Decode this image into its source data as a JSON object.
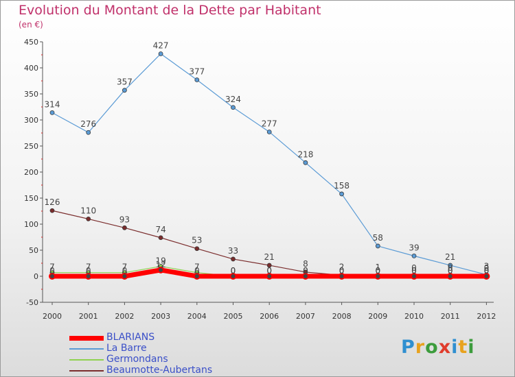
{
  "header": {
    "title": "Evolution du Montant de la Dette par Habitant",
    "subtitle": "(en €)"
  },
  "logo": {
    "text": "Proxiti",
    "colors": [
      "#2f8fd0",
      "#e8a21e",
      "#3c9c3c",
      "#e03c2c",
      "#2f8fd0",
      "#e8a21e",
      "#3c9c3c"
    ]
  },
  "chart_data": {
    "type": "line",
    "x": [
      "2000",
      "2001",
      "2002",
      "2003",
      "2004",
      "2005",
      "2006",
      "2007",
      "2008",
      "2009",
      "2010",
      "2011",
      "2012"
    ],
    "ylim": [
      -50,
      450
    ],
    "yticks": [
      -50,
      0,
      50,
      100,
      150,
      200,
      250,
      300,
      350,
      400,
      450
    ],
    "grid": false,
    "legend_position": "bottom-left",
    "series": [
      {
        "name": "BLARIANS",
        "color": "#ff0000",
        "values": [
          0,
          0,
          0,
          12,
          0,
          0,
          0,
          0,
          0,
          0,
          0,
          0,
          0
        ],
        "labels": [
          "0",
          "0",
          "0",
          "12",
          "0",
          "0",
          "0",
          "0",
          "0",
          "0",
          "0",
          "0",
          "0"
        ]
      },
      {
        "name": "La Barre",
        "color": "#5b9bd5",
        "values": [
          314,
          276,
          357,
          427,
          377,
          324,
          277,
          218,
          158,
          58,
          39,
          21,
          3
        ],
        "labels": [
          "314",
          "276",
          "357",
          "427",
          "377",
          "324",
          "277",
          "218",
          "158",
          "58",
          "39",
          "21",
          "3"
        ]
      },
      {
        "name": "Germondans",
        "color": "#8fd14f",
        "values": [
          7,
          7,
          7,
          19,
          7,
          0,
          0,
          0,
          0,
          0,
          0,
          0,
          0
        ],
        "labels": [
          "7",
          "7",
          "7",
          "19",
          "7",
          "0",
          "0",
          "0",
          "0",
          "0",
          "0",
          "0",
          "0"
        ]
      },
      {
        "name": "Beaumotte-Aubertans",
        "color": "#7a2c2c",
        "values": [
          126,
          110,
          93,
          74,
          53,
          33,
          21,
          8,
          2,
          1,
          0,
          0,
          0
        ],
        "labels": [
          "126",
          "110",
          "93",
          "74",
          "53",
          "33",
          "21",
          "8",
          "2",
          "1",
          "0",
          "0",
          "0"
        ]
      }
    ]
  }
}
